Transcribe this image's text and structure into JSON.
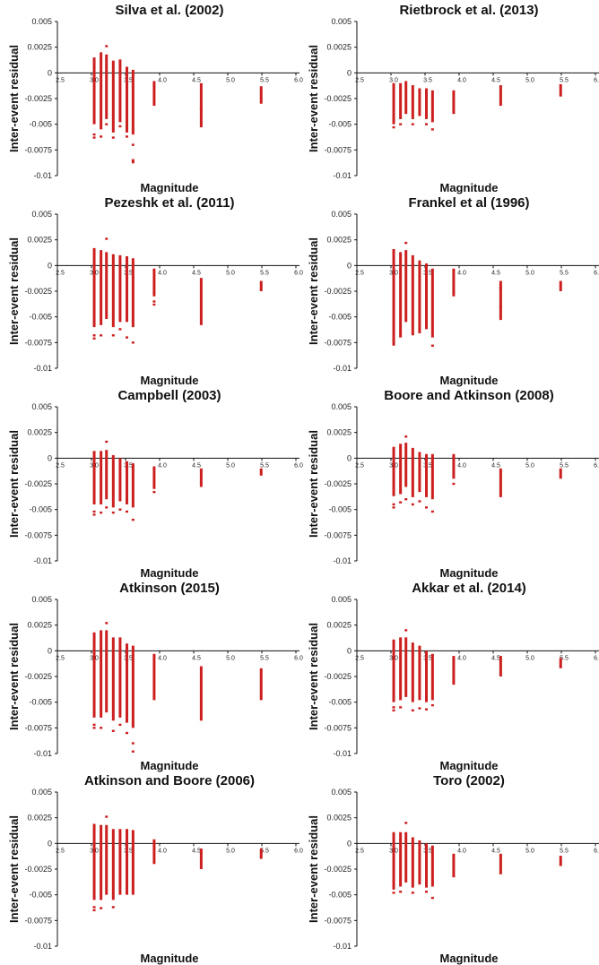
{
  "figure": {
    "y_label": "Inter-event residual",
    "x_label": "Magnitude",
    "y_ticks": [
      "0.005",
      "0.0025",
      "0",
      "-0.0025",
      "-0.005",
      "-0.0075",
      "-0.01"
    ],
    "x_ticks": [
      "2.5",
      "3.0",
      "3.5",
      "4.0",
      "4.5",
      "5.0",
      "5.5",
      "6.0"
    ],
    "bar_color": "#cc1f1f"
  },
  "chart_data": [
    {
      "type": "scatter",
      "title": "Silva et al. (2002)",
      "xlabel": "Magnitude",
      "ylabel": "Inter-event residual",
      "xlim": [
        2.5,
        6.0
      ],
      "ylim": [
        -0.01,
        0.005
      ],
      "columns": [
        {
          "x": 3.04,
          "lo": -0.005,
          "hi": 0.0015,
          "extra": [
            -0.006,
            -0.0063
          ]
        },
        {
          "x": 3.14,
          "lo": -0.0055,
          "hi": 0.002,
          "extra": [
            -0.0062
          ]
        },
        {
          "x": 3.22,
          "lo": -0.0045,
          "hi": 0.0018,
          "extra": [
            0.0026,
            -0.005
          ]
        },
        {
          "x": 3.32,
          "lo": -0.0058,
          "hi": 0.0012,
          "extra": [
            -0.0063
          ]
        },
        {
          "x": 3.42,
          "lo": -0.0048,
          "hi": 0.0013,
          "extra": [
            -0.0052
          ]
        },
        {
          "x": 3.52,
          "lo": -0.0058,
          "hi": 0.0006,
          "extra": [
            -0.0062
          ]
        },
        {
          "x": 3.61,
          "lo": -0.006,
          "hi": 0.0003,
          "extra": [
            -0.007,
            -0.0085,
            -0.0087
          ]
        },
        {
          "x": 3.92,
          "lo": -0.0032,
          "hi": -0.0008,
          "extra": []
        },
        {
          "x": 4.61,
          "lo": -0.0053,
          "hi": -0.001,
          "extra": [
            -0.0035
          ]
        },
        {
          "x": 5.49,
          "lo": -0.003,
          "hi": -0.0013,
          "extra": []
        }
      ]
    },
    {
      "type": "scatter",
      "title": "Rietbrock et al. (2013)",
      "xlabel": "Magnitude",
      "ylabel": "Inter-event residual",
      "xlim": [
        2.5,
        6.0
      ],
      "ylim": [
        -0.01,
        0.005
      ],
      "columns": [
        {
          "x": 3.04,
          "lo": -0.005,
          "hi": -0.001,
          "extra": [
            -0.0053
          ]
        },
        {
          "x": 3.14,
          "lo": -0.0045,
          "hi": -0.001,
          "extra": [
            -0.005
          ]
        },
        {
          "x": 3.22,
          "lo": -0.004,
          "hi": -0.0008,
          "extra": []
        },
        {
          "x": 3.32,
          "lo": -0.0045,
          "hi": -0.0012,
          "extra": [
            -0.005
          ]
        },
        {
          "x": 3.42,
          "lo": -0.0042,
          "hi": -0.0015,
          "extra": []
        },
        {
          "x": 3.52,
          "lo": -0.0045,
          "hi": -0.0015,
          "extra": [
            -0.005
          ]
        },
        {
          "x": 3.61,
          "lo": -0.0048,
          "hi": -0.0017,
          "extra": [
            -0.0055
          ]
        },
        {
          "x": 3.92,
          "lo": -0.004,
          "hi": -0.0017,
          "extra": []
        },
        {
          "x": 4.61,
          "lo": -0.0032,
          "hi": -0.0012,
          "extra": []
        },
        {
          "x": 5.49,
          "lo": -0.0023,
          "hi": -0.0011,
          "extra": []
        }
      ]
    },
    {
      "type": "scatter",
      "title": "Pezeshk et al. (2011)",
      "xlabel": "Magnitude",
      "ylabel": "Inter-event residual",
      "xlim": [
        2.5,
        6.0
      ],
      "ylim": [
        -0.01,
        0.005
      ],
      "columns": [
        {
          "x": 3.04,
          "lo": -0.006,
          "hi": 0.0017,
          "extra": [
            -0.0068,
            -0.0071
          ]
        },
        {
          "x": 3.14,
          "lo": -0.0058,
          "hi": 0.0015,
          "extra": [
            -0.0068
          ]
        },
        {
          "x": 3.22,
          "lo": -0.0052,
          "hi": 0.0013,
          "extra": [
            0.0026
          ]
        },
        {
          "x": 3.32,
          "lo": -0.006,
          "hi": 0.0011,
          "extra": [
            -0.0068
          ]
        },
        {
          "x": 3.42,
          "lo": -0.0055,
          "hi": 0.001,
          "extra": [
            -0.0062
          ]
        },
        {
          "x": 3.52,
          "lo": -0.0055,
          "hi": 0.0009,
          "extra": [
            -0.007
          ]
        },
        {
          "x": 3.61,
          "lo": -0.006,
          "hi": 0.0007,
          "extra": [
            -0.0075
          ]
        },
        {
          "x": 3.92,
          "lo": -0.003,
          "hi": -0.0003,
          "extra": [
            -0.0035,
            -0.0038
          ]
        },
        {
          "x": 4.61,
          "lo": -0.0058,
          "hi": -0.0012,
          "extra": []
        },
        {
          "x": 5.49,
          "lo": -0.0025,
          "hi": -0.0015,
          "extra": []
        }
      ]
    },
    {
      "type": "scatter",
      "title": "Frankel et al (1996)",
      "xlabel": "Magnitude",
      "ylabel": "Inter-event residual",
      "xlim": [
        2.5,
        6.0
      ],
      "ylim": [
        -0.01,
        0.005
      ],
      "columns": [
        {
          "x": 3.04,
          "lo": -0.0078,
          "hi": 0.0016,
          "extra": []
        },
        {
          "x": 3.14,
          "lo": -0.007,
          "hi": 0.0013,
          "extra": []
        },
        {
          "x": 3.22,
          "lo": -0.0055,
          "hi": 0.0015,
          "extra": [
            0.0022
          ]
        },
        {
          "x": 3.32,
          "lo": -0.0068,
          "hi": 0.001,
          "extra": []
        },
        {
          "x": 3.42,
          "lo": -0.0066,
          "hi": 0.0005,
          "extra": []
        },
        {
          "x": 3.52,
          "lo": -0.0062,
          "hi": 0.0002,
          "extra": []
        },
        {
          "x": 3.61,
          "lo": -0.007,
          "hi": -0.0003,
          "extra": [
            -0.0078
          ]
        },
        {
          "x": 3.92,
          "lo": -0.003,
          "hi": -0.0003,
          "extra": []
        },
        {
          "x": 4.61,
          "lo": -0.0053,
          "hi": -0.0015,
          "extra": [
            -0.004,
            -0.0022
          ]
        },
        {
          "x": 5.49,
          "lo": -0.0025,
          "hi": -0.0015,
          "extra": []
        }
      ]
    },
    {
      "type": "scatter",
      "title": "Campbell (2003)",
      "xlabel": "Magnitude",
      "ylabel": "Inter-event residual",
      "xlim": [
        2.5,
        6.0
      ],
      "ylim": [
        -0.01,
        0.005
      ],
      "columns": [
        {
          "x": 3.04,
          "lo": -0.0045,
          "hi": 0.0007,
          "extra": [
            -0.0052,
            -0.0055
          ]
        },
        {
          "x": 3.14,
          "lo": -0.0045,
          "hi": 0.0007,
          "extra": [
            -0.0053
          ]
        },
        {
          "x": 3.22,
          "lo": -0.004,
          "hi": 0.0008,
          "extra": [
            0.0016,
            -0.0048
          ]
        },
        {
          "x": 3.32,
          "lo": -0.0048,
          "hi": 0.0003,
          "extra": [
            -0.0053
          ]
        },
        {
          "x": 3.42,
          "lo": -0.0042,
          "hi": 0.0,
          "extra": [
            -0.005
          ]
        },
        {
          "x": 3.52,
          "lo": -0.0045,
          "hi": -0.0003,
          "extra": [
            -0.0052
          ]
        },
        {
          "x": 3.61,
          "lo": -0.0048,
          "hi": -0.0005,
          "extra": [
            -0.006
          ]
        },
        {
          "x": 3.92,
          "lo": -0.003,
          "hi": -0.0008,
          "extra": [
            -0.0033
          ]
        },
        {
          "x": 4.61,
          "lo": -0.0028,
          "hi": -0.001,
          "extra": []
        },
        {
          "x": 5.49,
          "lo": -0.0017,
          "hi": -0.001,
          "extra": []
        }
      ]
    },
    {
      "type": "scatter",
      "title": "Boore and Atkinson (2008)",
      "xlabel": "Magnitude",
      "ylabel": "Inter-event residual",
      "xlim": [
        2.5,
        6.0
      ],
      "ylim": [
        -0.01,
        0.005
      ],
      "columns": [
        {
          "x": 3.04,
          "lo": -0.0037,
          "hi": 0.0011,
          "extra": [
            -0.0045,
            -0.0048
          ]
        },
        {
          "x": 3.14,
          "lo": -0.0035,
          "hi": 0.0014,
          "extra": [
            -0.0043
          ]
        },
        {
          "x": 3.22,
          "lo": -0.0028,
          "hi": 0.0015,
          "extra": [
            0.0021,
            -0.004
          ]
        },
        {
          "x": 3.32,
          "lo": -0.0038,
          "hi": 0.001,
          "extra": [
            -0.0045
          ]
        },
        {
          "x": 3.42,
          "lo": -0.0033,
          "hi": 0.0006,
          "extra": [
            -0.0042
          ]
        },
        {
          "x": 3.52,
          "lo": -0.0038,
          "hi": 0.0004,
          "extra": [
            -0.0048
          ]
        },
        {
          "x": 3.61,
          "lo": -0.004,
          "hi": 0.0004,
          "extra": [
            -0.0052
          ]
        },
        {
          "x": 3.92,
          "lo": -0.002,
          "hi": 0.0004,
          "extra": [
            -0.0025
          ]
        },
        {
          "x": 4.61,
          "lo": -0.0038,
          "hi": -0.001,
          "extra": []
        },
        {
          "x": 5.49,
          "lo": -0.002,
          "hi": -0.001,
          "extra": []
        }
      ]
    },
    {
      "type": "scatter",
      "title": "Atkinson (2015)",
      "xlabel": "Magnitude",
      "ylabel": "Inter-event residual",
      "xlim": [
        2.5,
        6.0
      ],
      "ylim": [
        -0.01,
        0.005
      ],
      "columns": [
        {
          "x": 3.04,
          "lo": -0.0065,
          "hi": 0.0018,
          "extra": [
            -0.0072,
            -0.0075
          ]
        },
        {
          "x": 3.14,
          "lo": -0.0065,
          "hi": 0.002,
          "extra": [
            -0.0075
          ]
        },
        {
          "x": 3.22,
          "lo": -0.006,
          "hi": 0.002,
          "extra": [
            0.0027
          ]
        },
        {
          "x": 3.32,
          "lo": -0.0068,
          "hi": 0.0013,
          "extra": [
            -0.0078
          ]
        },
        {
          "x": 3.42,
          "lo": -0.0065,
          "hi": 0.0013,
          "extra": [
            -0.0072
          ]
        },
        {
          "x": 3.52,
          "lo": -0.007,
          "hi": 0.0007,
          "extra": [
            -0.008
          ]
        },
        {
          "x": 3.61,
          "lo": -0.0075,
          "hi": 0.0005,
          "extra": [
            -0.009,
            -0.0098
          ]
        },
        {
          "x": 3.92,
          "lo": -0.0048,
          "hi": -0.0003,
          "extra": []
        },
        {
          "x": 4.61,
          "lo": -0.0068,
          "hi": -0.0015,
          "extra": []
        },
        {
          "x": 5.49,
          "lo": -0.0048,
          "hi": -0.0017,
          "extra": []
        }
      ]
    },
    {
      "type": "scatter",
      "title": "Akkar et al. (2014)",
      "xlabel": "Magnitude",
      "ylabel": "Inter-event residual",
      "xlim": [
        2.5,
        6.0
      ],
      "ylim": [
        -0.01,
        0.005
      ],
      "columns": [
        {
          "x": 3.04,
          "lo": -0.005,
          "hi": 0.0011,
          "extra": [
            -0.0055,
            -0.0058
          ]
        },
        {
          "x": 3.14,
          "lo": -0.0048,
          "hi": 0.0013,
          "extra": [
            -0.0055
          ]
        },
        {
          "x": 3.22,
          "lo": -0.0045,
          "hi": 0.0013,
          "extra": [
            0.002
          ]
        },
        {
          "x": 3.32,
          "lo": -0.005,
          "hi": 0.0008,
          "extra": [
            -0.0058
          ]
        },
        {
          "x": 3.42,
          "lo": -0.0048,
          "hi": 0.0005,
          "extra": [
            -0.0056
          ]
        },
        {
          "x": 3.52,
          "lo": -0.005,
          "hi": 0.0,
          "extra": [
            -0.0057
          ]
        },
        {
          "x": 3.61,
          "lo": -0.0048,
          "hi": -0.0003,
          "extra": [
            -0.0053
          ]
        },
        {
          "x": 3.92,
          "lo": -0.0033,
          "hi": -0.0005,
          "extra": []
        },
        {
          "x": 4.61,
          "lo": -0.0025,
          "hi": -0.0005,
          "extra": []
        },
        {
          "x": 5.49,
          "lo": -0.0017,
          "hi": -0.0007,
          "extra": []
        }
      ]
    },
    {
      "type": "scatter",
      "title": "Atkinson and Boore (2006)",
      "xlabel": "Magnitude",
      "ylabel": "Inter-event residual",
      "xlim": [
        2.5,
        6.0
      ],
      "ylim": [
        -0.01,
        0.005
      ],
      "columns": [
        {
          "x": 3.04,
          "lo": -0.0055,
          "hi": 0.0019,
          "extra": [
            -0.0062,
            -0.0065
          ]
        },
        {
          "x": 3.14,
          "lo": -0.0055,
          "hi": 0.0018,
          "extra": [
            -0.0063
          ]
        },
        {
          "x": 3.22,
          "lo": -0.005,
          "hi": 0.0018,
          "extra": [
            0.0026
          ]
        },
        {
          "x": 3.32,
          "lo": -0.0055,
          "hi": 0.0014,
          "extra": [
            -0.0062
          ]
        },
        {
          "x": 3.42,
          "lo": -0.005,
          "hi": 0.0014,
          "extra": []
        },
        {
          "x": 3.52,
          "lo": -0.005,
          "hi": 0.0014,
          "extra": []
        },
        {
          "x": 3.61,
          "lo": -0.005,
          "hi": 0.0013,
          "extra": []
        },
        {
          "x": 3.92,
          "lo": -0.002,
          "hi": 0.0004,
          "extra": []
        },
        {
          "x": 4.61,
          "lo": -0.0025,
          "hi": -0.0005,
          "extra": []
        },
        {
          "x": 5.49,
          "lo": -0.0015,
          "hi": -0.0005,
          "extra": []
        }
      ]
    },
    {
      "type": "scatter",
      "title": "Toro (2002)",
      "xlabel": "Magnitude",
      "ylabel": "Inter-event residual",
      "xlim": [
        2.5,
        6.0
      ],
      "ylim": [
        -0.01,
        0.005
      ],
      "columns": [
        {
          "x": 3.04,
          "lo": -0.0045,
          "hi": 0.0011,
          "extra": [
            -0.0048
          ]
        },
        {
          "x": 3.14,
          "lo": -0.0042,
          "hi": 0.0011,
          "extra": [
            -0.0047
          ]
        },
        {
          "x": 3.22,
          "lo": -0.0038,
          "hi": 0.0011,
          "extra": [
            0.002
          ]
        },
        {
          "x": 3.32,
          "lo": -0.0043,
          "hi": 0.0006,
          "extra": [
            -0.0048
          ]
        },
        {
          "x": 3.42,
          "lo": -0.004,
          "hi": 0.0003,
          "extra": []
        },
        {
          "x": 3.52,
          "lo": -0.0043,
          "hi": 0.0,
          "extra": [
            -0.0047
          ]
        },
        {
          "x": 3.61,
          "lo": -0.0042,
          "hi": -0.0002,
          "extra": [
            -0.0053
          ]
        },
        {
          "x": 3.92,
          "lo": -0.0033,
          "hi": -0.001,
          "extra": []
        },
        {
          "x": 4.61,
          "lo": -0.003,
          "hi": -0.001,
          "extra": []
        },
        {
          "x": 5.49,
          "lo": -0.0022,
          "hi": -0.0012,
          "extra": []
        }
      ]
    }
  ]
}
